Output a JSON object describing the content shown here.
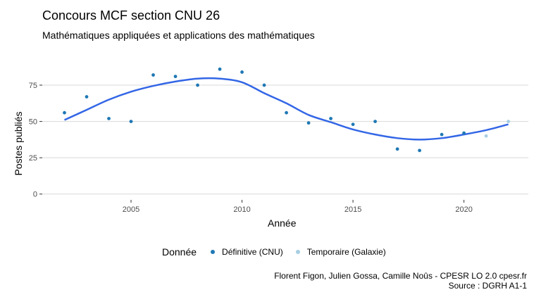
{
  "title": "Concours MCF section CNU 26",
  "subtitle": "Mathématiques appliquées et applications des mathématiques",
  "legend_title": "Donnée",
  "caption_line1": "Florent Figon, Julien Gossa, Camille Noûs - CPESR LO 2.0 cpesr.fr",
  "caption_line2": "Source : DGRH A1-1",
  "chart_data": {
    "type": "scatter",
    "xlabel": "Année",
    "ylabel": "Postes publiés",
    "xlim": [
      2001.0,
      2022.9
    ],
    "ylim": [
      -4,
      91
    ],
    "x_ticks": [
      2005,
      2010,
      2015,
      2020
    ],
    "y_ticks": [
      0,
      25,
      50,
      75
    ],
    "grid": true,
    "legend_position": "bottom",
    "series": [
      {
        "name": "Définitive (CNU)",
        "color": "#1f78b4",
        "x": [
          2002,
          2003,
          2004,
          2005,
          2006,
          2007,
          2008,
          2009,
          2010,
          2011,
          2012,
          2013,
          2014,
          2015,
          2016,
          2017,
          2018,
          2019,
          2020
        ],
        "y": [
          56,
          67,
          52,
          50,
          82,
          81,
          75,
          86,
          84,
          75,
          56,
          49,
          52,
          48,
          50,
          31,
          30,
          41,
          42
        ]
      },
      {
        "name": "Temporaire (Galaxie)",
        "color": "#a6cee3",
        "x": [
          2021,
          2022
        ],
        "y": [
          40,
          50
        ]
      }
    ],
    "smooth": {
      "color": "#3366e6",
      "x": [
        2002,
        2003,
        2004,
        2005,
        2006,
        2007,
        2008,
        2009,
        2010,
        2011,
        2012,
        2013,
        2014,
        2015,
        2016,
        2017,
        2018,
        2019,
        2020,
        2021,
        2022
      ],
      "y": [
        51,
        58,
        65,
        70.5,
        74.5,
        77.5,
        79.5,
        79.5,
        77,
        69.5,
        62.5,
        54.5,
        49.5,
        44.5,
        41,
        38.5,
        37.5,
        38.5,
        41,
        44,
        48
      ]
    }
  }
}
